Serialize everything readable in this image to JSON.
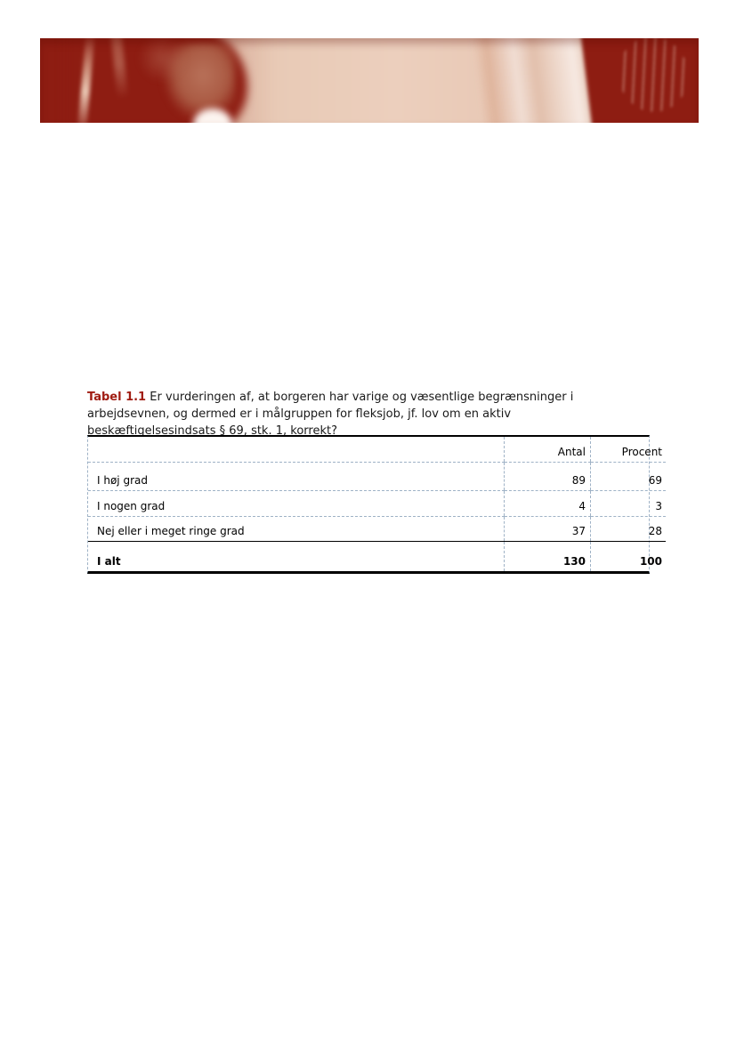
{
  "banner": {
    "description": "duotone red photo: person in silhouette looking at a computer monitor",
    "colors": {
      "base_red": "#8e1d12",
      "light_center": "#e6c6b2",
      "highlight": "#f7eae3"
    }
  },
  "caption": {
    "label": "Tabel 1.1",
    "line1": "Er vurderingen af, at borgeren har varige og væsentlige begrænsninger i",
    "line2": "arbejdsevnen, og dermed er i målgruppen for fleksjob, jf. lov om en aktiv",
    "line3": "beskæftigelsesindsats § 69, stk. 1, korrekt?",
    "accent_color": "#a01c12"
  },
  "chart_data": {
    "type": "table",
    "title": "Tabel 1.1",
    "columns": [
      "",
      "Antal",
      "Procent"
    ],
    "rows": [
      {
        "label": "I høj grad",
        "antal": "89",
        "procent": "69"
      },
      {
        "label": "I nogen grad",
        "antal": "4",
        "procent": "3"
      },
      {
        "label": "Nej eller i meget ringe grad",
        "antal": "37",
        "procent": "28"
      }
    ],
    "total": {
      "label": "I alt",
      "antal": "130",
      "procent": "100"
    }
  },
  "table": {
    "columns": {
      "label": "",
      "antal": "Antal",
      "procent": "Procent"
    },
    "rows": [
      {
        "label": "I høj grad",
        "antal": "89",
        "procent": "69"
      },
      {
        "label": "I nogen grad",
        "antal": "4",
        "procent": "3"
      },
      {
        "label": "Nej eller i meget ringe grad",
        "antal": "37",
        "procent": "28"
      }
    ],
    "total": {
      "label": "I alt",
      "antal": "130",
      "procent": "100"
    },
    "colors": {
      "dashed_border": "#9fb2c6",
      "solid_border": "#000000"
    }
  }
}
